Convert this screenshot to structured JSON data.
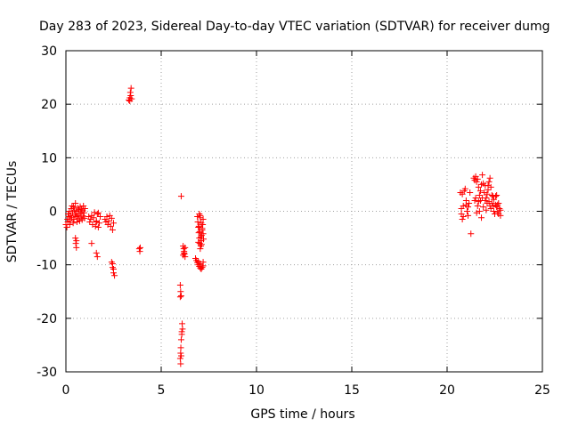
{
  "chart_data": {
    "type": "scatter",
    "title": "Day 283 of 2023, Sidereal Day-to-day VTEC variation (SDTVAR) for receiver dumg",
    "xlabel": "GPS time / hours",
    "ylabel": "SDTVAR / TECUs",
    "xlim": [
      0,
      25
    ],
    "ylim": [
      -30,
      30
    ],
    "xticks": [
      0,
      5,
      10,
      15,
      20,
      25
    ],
    "yticks": [
      -30,
      -20,
      -10,
      0,
      10,
      20,
      30
    ],
    "xtick_labels": [
      "0",
      "5",
      "10",
      "15",
      "20",
      "25"
    ],
    "ytick_labels": [
      "-30",
      "-20",
      "-10",
      "0",
      "10",
      "20",
      "30"
    ],
    "grid": true,
    "marker": "+",
    "series": [
      {
        "name": "SDTVAR",
        "color": "#ff0000",
        "points": [
          [
            0.0,
            -2.5
          ],
          [
            0.05,
            -3.0
          ],
          [
            0.08,
            -1.5
          ],
          [
            0.1,
            -2.0
          ],
          [
            0.12,
            -0.5
          ],
          [
            0.15,
            -1.0
          ],
          [
            0.18,
            0.0
          ],
          [
            0.2,
            -2.5
          ],
          [
            0.22,
            -1.8
          ],
          [
            0.25,
            -0.8
          ],
          [
            0.28,
            0.5
          ],
          [
            0.3,
            -1.2
          ],
          [
            0.32,
            1.0
          ],
          [
            0.35,
            -0.3
          ],
          [
            0.38,
            -2.2
          ],
          [
            0.4,
            0.8
          ],
          [
            0.42,
            -1.5
          ],
          [
            0.45,
            0.2
          ],
          [
            0.48,
            -0.6
          ],
          [
            0.5,
            1.5
          ],
          [
            0.52,
            -1.0
          ],
          [
            0.55,
            0.0
          ],
          [
            0.58,
            -2.0
          ],
          [
            0.6,
            -0.8
          ],
          [
            0.62,
            0.6
          ],
          [
            0.65,
            -1.4
          ],
          [
            0.68,
            0.3
          ],
          [
            0.7,
            -0.5
          ],
          [
            0.72,
            -1.8
          ],
          [
            0.75,
            0.9
          ],
          [
            0.78,
            -0.2
          ],
          [
            0.8,
            -1.1
          ],
          [
            0.82,
            0.4
          ],
          [
            0.85,
            -1.6
          ],
          [
            0.88,
            0.1
          ],
          [
            0.9,
            -0.9
          ],
          [
            0.92,
            1.0
          ],
          [
            0.95,
            -0.3
          ],
          [
            0.98,
            -1.3
          ],
          [
            1.0,
            0.5
          ],
          [
            0.5,
            -5.0
          ],
          [
            0.52,
            -6.0
          ],
          [
            0.55,
            -6.8
          ],
          [
            0.55,
            -5.5
          ],
          [
            1.2,
            -1.0
          ],
          [
            1.25,
            -2.0
          ],
          [
            1.3,
            -1.5
          ],
          [
            1.35,
            -0.8
          ],
          [
            1.4,
            -2.5
          ],
          [
            1.45,
            -1.2
          ],
          [
            1.5,
            -0.2
          ],
          [
            1.55,
            -2.8
          ],
          [
            1.6,
            -1.8
          ],
          [
            1.65,
            -0.5
          ],
          [
            1.7,
            -3.0
          ],
          [
            1.75,
            -2.2
          ],
          [
            1.8,
            -1.0
          ],
          [
            1.7,
            -0.3
          ],
          [
            1.6,
            -2.0
          ],
          [
            1.35,
            -6.0
          ],
          [
            1.6,
            -7.8
          ],
          [
            1.65,
            -8.5
          ],
          [
            2.05,
            -1.5
          ],
          [
            2.1,
            -2.0
          ],
          [
            2.15,
            -1.0
          ],
          [
            2.2,
            -2.5
          ],
          [
            2.25,
            -1.8
          ],
          [
            2.3,
            -0.8
          ],
          [
            2.35,
            -2.8
          ],
          [
            2.4,
            -1.3
          ],
          [
            2.45,
            -3.5
          ],
          [
            2.5,
            -2.2
          ],
          [
            2.4,
            -9.5
          ],
          [
            2.45,
            -10.5
          ],
          [
            2.5,
            -11.5
          ],
          [
            2.55,
            -12.0
          ],
          [
            2.45,
            -9.8
          ],
          [
            2.5,
            -10.8
          ],
          [
            3.3,
            20.8
          ],
          [
            3.35,
            21.2
          ],
          [
            3.4,
            21.6
          ],
          [
            3.45,
            21.0
          ],
          [
            3.38,
            22.2
          ],
          [
            3.42,
            23.0
          ],
          [
            3.35,
            20.6
          ],
          [
            3.85,
            -7.0
          ],
          [
            3.88,
            -7.5
          ],
          [
            3.9,
            -6.8
          ],
          [
            6.05,
            2.8
          ],
          [
            6.0,
            -13.8
          ],
          [
            6.02,
            -15.0
          ],
          [
            6.05,
            -15.8
          ],
          [
            6.0,
            -16.0
          ],
          [
            6.1,
            -21.0
          ],
          [
            6.12,
            -22.0
          ],
          [
            6.08,
            -23.0
          ],
          [
            6.05,
            -24.0
          ],
          [
            6.03,
            -25.5
          ],
          [
            6.02,
            -26.5
          ],
          [
            6.0,
            -27.5
          ],
          [
            6.02,
            -28.5
          ],
          [
            6.05,
            -27.0
          ],
          [
            6.08,
            -22.5
          ],
          [
            6.15,
            -6.5
          ],
          [
            6.18,
            -7.0
          ],
          [
            6.2,
            -7.5
          ],
          [
            6.22,
            -8.0
          ],
          [
            6.25,
            -8.5
          ],
          [
            6.2,
            -7.8
          ],
          [
            6.15,
            -8.2
          ],
          [
            6.25,
            -6.8
          ],
          [
            6.8,
            -8.8
          ],
          [
            6.85,
            -9.2
          ],
          [
            6.9,
            -9.6
          ],
          [
            6.95,
            -10.0
          ],
          [
            7.0,
            -10.3
          ],
          [
            7.05,
            -10.6
          ],
          [
            7.1,
            -10.8
          ],
          [
            7.15,
            -10.5
          ],
          [
            7.2,
            -10.2
          ],
          [
            6.95,
            -9.4
          ],
          [
            7.05,
            -9.8
          ],
          [
            7.2,
            -9.5
          ],
          [
            6.9,
            -1.0
          ],
          [
            6.92,
            -2.0
          ],
          [
            6.95,
            -3.0
          ],
          [
            6.97,
            -4.0
          ],
          [
            7.0,
            -5.0
          ],
          [
            7.02,
            -6.0
          ],
          [
            7.05,
            -7.0
          ],
          [
            7.08,
            -6.5
          ],
          [
            7.1,
            -5.5
          ],
          [
            7.12,
            -4.5
          ],
          [
            7.15,
            -3.5
          ],
          [
            7.18,
            -2.5
          ],
          [
            7.2,
            -1.5
          ],
          [
            7.0,
            -0.5
          ],
          [
            7.05,
            -1.2
          ],
          [
            7.1,
            -2.2
          ],
          [
            7.15,
            -3.2
          ],
          [
            7.2,
            -4.2
          ],
          [
            7.22,
            -5.2
          ],
          [
            6.98,
            -2.8
          ],
          [
            7.02,
            -3.8
          ],
          [
            7.08,
            -4.8
          ],
          [
            6.95,
            -5.8
          ],
          [
            7.12,
            -6.2
          ],
          [
            7.05,
            -0.8
          ],
          [
            20.7,
            3.5
          ],
          [
            20.75,
            0.5
          ],
          [
            20.8,
            -1.5
          ],
          [
            20.85,
            1.0
          ],
          [
            20.9,
            3.8
          ],
          [
            20.95,
            4.2
          ],
          [
            21.0,
            2.0
          ],
          [
            21.05,
            0.0
          ],
          [
            21.1,
            -0.8
          ],
          [
            21.15,
            1.5
          ],
          [
            21.2,
            3.5
          ],
          [
            20.8,
            3.2
          ],
          [
            21.25,
            -4.2
          ],
          [
            20.75,
            -0.5
          ],
          [
            20.85,
            -1.0
          ],
          [
            21.0,
            1.2
          ],
          [
            21.1,
            0.8
          ],
          [
            21.4,
            6.2
          ],
          [
            21.45,
            5.8
          ],
          [
            21.5,
            6.5
          ],
          [
            21.55,
            5.5
          ],
          [
            21.6,
            6.0
          ],
          [
            21.65,
            4.5
          ],
          [
            21.7,
            3.0
          ],
          [
            21.75,
            2.0
          ],
          [
            21.8,
            5.0
          ],
          [
            21.85,
            6.8
          ],
          [
            21.9,
            5.2
          ],
          [
            21.95,
            3.5
          ],
          [
            22.0,
            4.8
          ],
          [
            22.05,
            2.5
          ],
          [
            22.1,
            1.5
          ],
          [
            22.15,
            4.0
          ],
          [
            22.2,
            5.5
          ],
          [
            22.25,
            6.2
          ],
          [
            22.3,
            4.5
          ],
          [
            22.35,
            3.0
          ],
          [
            22.4,
            1.0
          ],
          [
            22.45,
            0.0
          ],
          [
            22.5,
            -0.5
          ],
          [
            22.55,
            1.2
          ],
          [
            22.6,
            0.8
          ],
          [
            22.65,
            -0.2
          ],
          [
            22.7,
            1.5
          ],
          [
            22.75,
            0.5
          ],
          [
            22.8,
            -0.8
          ],
          [
            21.5,
            2.5
          ],
          [
            21.6,
            1.0
          ],
          [
            21.7,
            0.0
          ],
          [
            21.8,
            -1.2
          ],
          [
            21.9,
            0.8
          ],
          [
            22.0,
            2.0
          ],
          [
            22.1,
            3.2
          ],
          [
            22.2,
            1.8
          ],
          [
            22.3,
            0.5
          ],
          [
            22.4,
            2.8
          ],
          [
            21.55,
            -0.3
          ],
          [
            21.65,
            1.8
          ],
          [
            21.85,
            2.5
          ],
          [
            22.05,
            0.2
          ],
          [
            22.25,
            1.0
          ],
          [
            22.45,
            2.2
          ],
          [
            22.6,
            3.0
          ],
          [
            22.7,
            -0.5
          ],
          [
            21.45,
            2.0
          ],
          [
            21.75,
            3.8
          ],
          [
            22.15,
            4.8
          ],
          [
            22.35,
            1.5
          ],
          [
            22.55,
            2.8
          ],
          [
            22.65,
            1.2
          ],
          [
            22.8,
            0.2
          ]
        ]
      }
    ]
  }
}
